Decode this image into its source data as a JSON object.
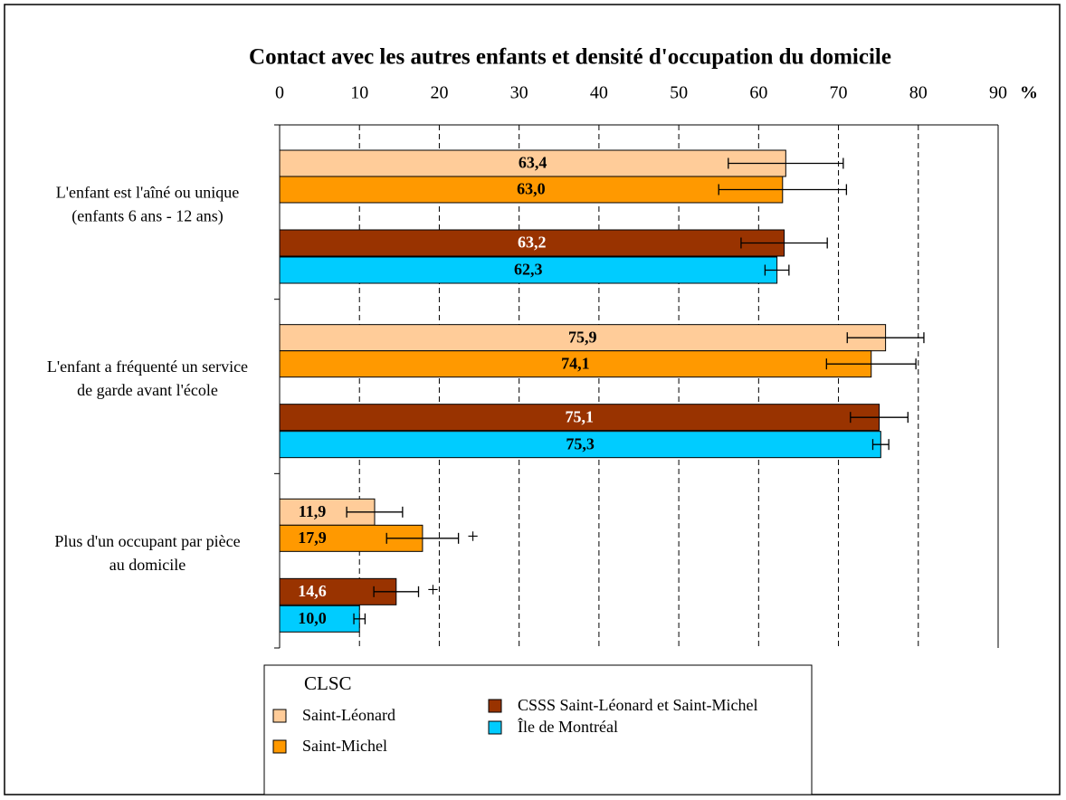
{
  "chart_data": {
    "type": "hbar",
    "title": "Contact avec les autres enfants et densité d'occupation du domicile",
    "x_label": "%",
    "categories": [
      [
        "L'enfant est l'aîné ou unique",
        "(enfants 6 ans - 12 ans)"
      ],
      [
        "L'enfant a fréquenté un service",
        "de garde avant l'école"
      ],
      [
        "Plus d'un occupant par pièce",
        "au domicile"
      ]
    ],
    "xlim": [
      0,
      90
    ],
    "xticks": [
      0,
      10,
      20,
      30,
      40,
      50,
      60,
      70,
      80,
      90
    ],
    "grid": true,
    "legend_title": "CLSC",
    "series": [
      {
        "name": "Saint-Léonard",
        "color": "#ffcc99",
        "values": [
          63.4,
          75.9,
          11.9
        ],
        "value_labels": [
          "63,4",
          "75,9",
          "11,9"
        ],
        "errors": [
          7.2,
          4.8,
          3.5
        ],
        "flags": [
          null,
          null,
          null
        ]
      },
      {
        "name": "Saint-Michel",
        "color": "#ff9900",
        "values": [
          63.0,
          74.1,
          17.9
        ],
        "value_labels": [
          "63,0",
          "74,1",
          "17,9"
        ],
        "errors": [
          8.0,
          5.6,
          4.5
        ],
        "flags": [
          null,
          null,
          "+"
        ]
      },
      {
        "name": "CSSS Saint-Léonard et Saint-Michel",
        "color": "#993300",
        "values": [
          63.2,
          75.1,
          14.6
        ],
        "value_labels": [
          "63,2",
          "75,1",
          "14,6"
        ],
        "errors": [
          5.4,
          3.6,
          2.8
        ],
        "flags": [
          null,
          null,
          "+"
        ]
      },
      {
        "name": "Île de Montréal",
        "color": "#00ccff",
        "values": [
          62.3,
          75.3,
          10.0
        ],
        "value_labels": [
          "62,3",
          "75,3",
          "10,0"
        ],
        "errors": [
          1.5,
          1.0,
          0.7
        ],
        "flags": [
          null,
          null,
          null
        ]
      }
    ]
  }
}
